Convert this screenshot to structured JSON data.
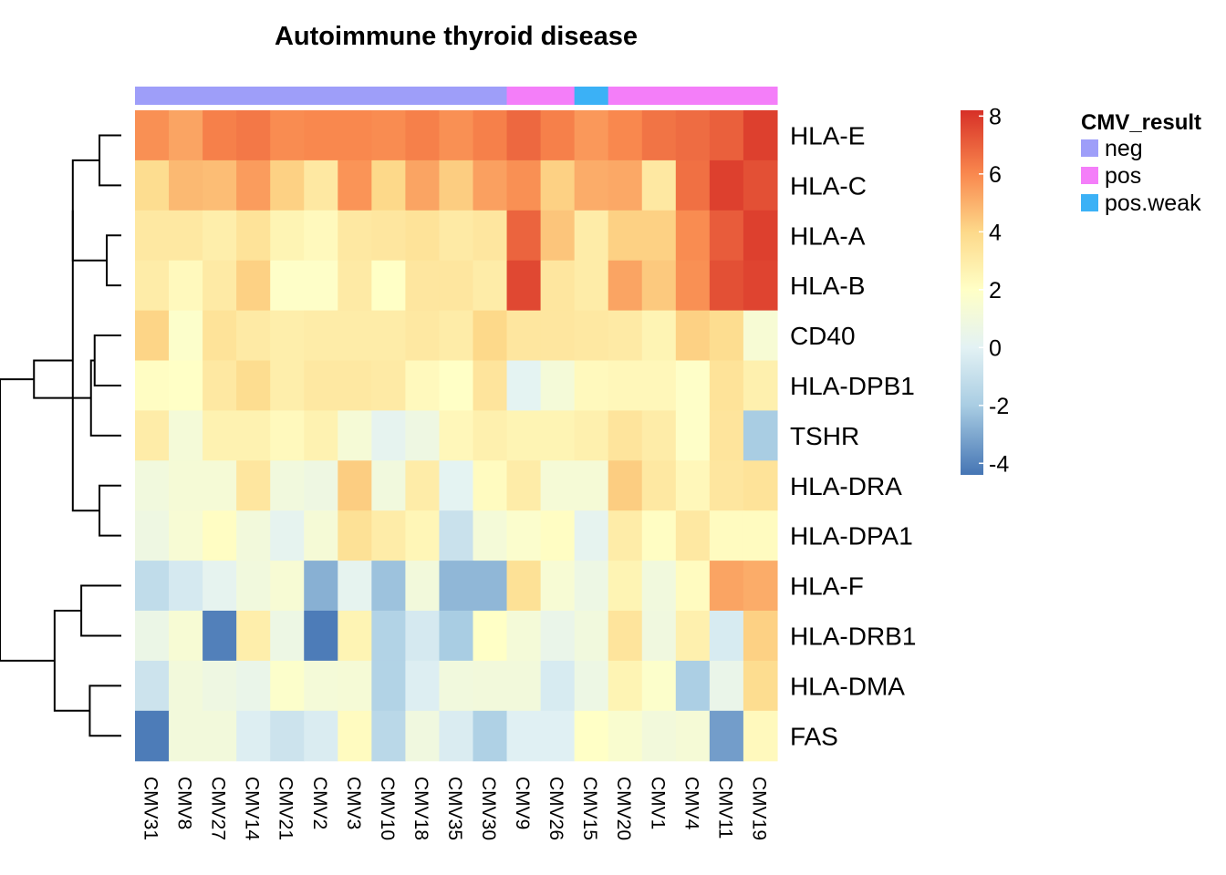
{
  "chart_data": {
    "type": "heatmap",
    "title": "Autoimmune thyroid disease",
    "columns": [
      "CMV31",
      "CMV8",
      "CMV27",
      "CMV14",
      "CMV21",
      "CMV2",
      "CMV3",
      "CMV10",
      "CMV18",
      "CMV35",
      "CMV30",
      "CMV9",
      "CMV26",
      "CMV15",
      "CMV20",
      "CMV1",
      "CMV4",
      "CMV11",
      "CMV19"
    ],
    "rows": [
      "HLA-E",
      "HLA-C",
      "HLA-A",
      "HLA-B",
      "CD40",
      "HLA-DPB1",
      "TSHR",
      "HLA-DRA",
      "HLA-DPA1",
      "HLA-F",
      "HLA-DRB1",
      "HLA-DMA",
      "FAS"
    ],
    "values": [
      [
        5.8,
        5.3,
        6.2,
        6.4,
        5.9,
        6.0,
        6.0,
        5.9,
        6.2,
        5.8,
        6.2,
        6.8,
        6.2,
        5.6,
        6.0,
        6.5,
        6.7,
        7.0,
        7.8
      ],
      [
        3.8,
        4.8,
        4.7,
        5.5,
        4.2,
        3.2,
        5.7,
        4.0,
        5.3,
        4.3,
        5.4,
        5.8,
        4.2,
        5.1,
        5.2,
        3.2,
        6.6,
        7.8,
        7.4
      ],
      [
        3.2,
        3.2,
        2.9,
        3.5,
        2.6,
        2.3,
        3.2,
        3.3,
        3.5,
        3.1,
        3.3,
        6.9,
        4.5,
        3.0,
        4.2,
        4.2,
        5.9,
        7.1,
        7.8
      ],
      [
        3.0,
        2.3,
        3.1,
        4.2,
        1.9,
        1.9,
        3.1,
        2.0,
        3.3,
        3.3,
        3.0,
        7.6,
        3.3,
        3.0,
        5.3,
        4.4,
        5.8,
        7.4,
        7.7
      ],
      [
        4.1,
        1.8,
        3.5,
        3.1,
        2.9,
        3.0,
        3.0,
        3.0,
        3.2,
        3.0,
        4.0,
        3.3,
        3.3,
        3.2,
        3.1,
        2.6,
        4.2,
        3.8,
        1.4
      ],
      [
        2.1,
        2.0,
        3.2,
        3.8,
        2.9,
        3.2,
        3.2,
        3.1,
        2.3,
        2.0,
        3.4,
        0.1,
        1.2,
        2.3,
        2.4,
        2.4,
        1.9,
        3.5,
        2.8
      ],
      [
        3.0,
        1.2,
        2.7,
        2.7,
        2.3,
        2.7,
        1.3,
        0.2,
        0.8,
        2.4,
        2.8,
        2.6,
        2.6,
        2.8,
        3.4,
        3.0,
        1.9,
        3.4,
        -2.0
      ],
      [
        1.0,
        1.3,
        1.3,
        3.3,
        1.0,
        0.8,
        4.3,
        1.0,
        3.0,
        0.1,
        2.2,
        3.0,
        1.3,
        1.3,
        4.3,
        3.2,
        2.4,
        3.3,
        3.5
      ],
      [
        0.8,
        1.4,
        2.1,
        1.1,
        0.2,
        1.3,
        3.6,
        3.0,
        2.5,
        -0.9,
        1.2,
        1.7,
        2.1,
        0.2,
        3.0,
        2.1,
        3.2,
        2.2,
        2.2
      ],
      [
        -1.2,
        -0.5,
        0.2,
        1.0,
        1.4,
        -2.8,
        0.2,
        -2.3,
        1.1,
        -2.6,
        -2.6,
        3.6,
        1.4,
        0.7,
        2.6,
        1.0,
        2.2,
        5.3,
        5.1
      ],
      [
        0.6,
        1.4,
        -4.1,
        2.9,
        0.7,
        -4.2,
        2.6,
        -1.7,
        -0.5,
        -2.0,
        2.0,
        1.2,
        0.5,
        1.0,
        3.4,
        0.9,
        2.8,
        -0.4,
        4.2
      ],
      [
        -0.8,
        1.1,
        0.8,
        0.5,
        1.8,
        1.2,
        1.3,
        -1.7,
        -0.2,
        1.0,
        1.1,
        1.1,
        -0.4,
        0.7,
        2.6,
        1.8,
        -1.9,
        0.5,
        3.8
      ],
      [
        -4.2,
        1.1,
        1.1,
        -0.2,
        -0.8,
        -0.3,
        2.2,
        -1.4,
        0.9,
        -0.3,
        -1.8,
        -0.1,
        -0.1,
        2.0,
        1.6,
        1.1,
        1.3,
        -3.3,
        2.3
      ]
    ],
    "annotation": {
      "name": "CMV_result",
      "per_column": [
        "neg",
        "neg",
        "neg",
        "neg",
        "neg",
        "neg",
        "neg",
        "neg",
        "neg",
        "neg",
        "neg",
        "pos",
        "pos",
        "pos.weak",
        "pos",
        "pos",
        "pos",
        "pos",
        "pos"
      ],
      "levels": [
        {
          "label": "neg",
          "color": "#9E9EF9"
        },
        {
          "label": "pos",
          "color": "#F47EF9"
        },
        {
          "label": "pos.weak",
          "color": "#3BB1F6"
        }
      ]
    },
    "color_scale": {
      "stops": [
        {
          "value": -4.4,
          "color": "#4575B4"
        },
        {
          "value": -2.0,
          "color": "#A9CDE3"
        },
        {
          "value": 0.0,
          "color": "#E3F2F4"
        },
        {
          "value": 2.0,
          "color": "#FFFFC6"
        },
        {
          "value": 4.0,
          "color": "#FDD98A"
        },
        {
          "value": 6.0,
          "color": "#F9884E"
        },
        {
          "value": 8.2,
          "color": "#D73027"
        }
      ],
      "ticks": [
        8,
        6,
        4,
        2,
        0,
        -2,
        -4
      ],
      "range": [
        -4.4,
        8.2
      ]
    },
    "row_dendrogram": {
      "leaves": 13,
      "merges": [
        {
          "a": 2,
          "b": 3,
          "height": 0.12
        },
        {
          "a": 0,
          "b": 1,
          "height": 0.18
        },
        {
          "a": 7,
          "b": 8,
          "height": 0.18
        },
        {
          "a": 4,
          "b": 5,
          "height": 0.22
        },
        {
          "a": 11,
          "b": 12,
          "height": 0.26
        },
        {
          "a": 9,
          "b": 10,
          "height": 0.33
        },
        {
          "a": 13,
          "b": 14,
          "height": 0.4
        },
        {
          "a": 16,
          "b": 6,
          "height": 0.25
        },
        {
          "a": 19,
          "b": 15,
          "height": 0.4
        },
        {
          "a": 18,
          "b": 17,
          "height": 0.55
        },
        {
          "a": 20,
          "b": 21,
          "height": 0.72
        },
        {
          "a": 22,
          "b": 23,
          "height": 1.0
        }
      ]
    }
  }
}
